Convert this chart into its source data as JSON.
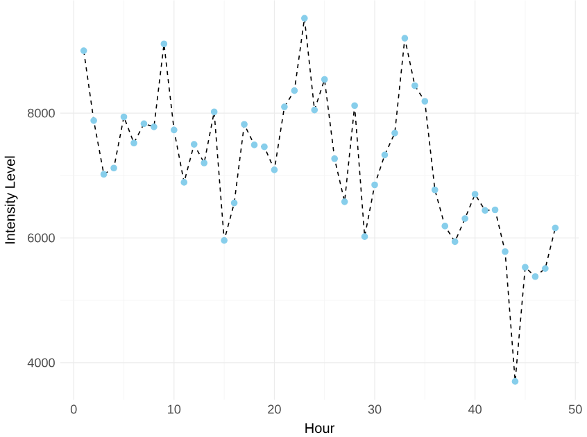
{
  "chart_data": {
    "type": "line",
    "xlabel": "Hour",
    "ylabel": "Intensity Level",
    "x": [
      1,
      2,
      3,
      4,
      5,
      6,
      7,
      8,
      9,
      10,
      11,
      12,
      13,
      14,
      15,
      16,
      17,
      18,
      19,
      20,
      21,
      22,
      23,
      24,
      25,
      26,
      27,
      28,
      29,
      30,
      31,
      32,
      33,
      34,
      35,
      36,
      37,
      38,
      39,
      40,
      41,
      42,
      43,
      44,
      45,
      46,
      47,
      48
    ],
    "series": [
      {
        "color": "#87ceeb",
        "values": [
          9000,
          7880,
          7020,
          7120,
          7940,
          7520,
          7830,
          7780,
          9110,
          7730,
          6890,
          7500,
          7200,
          8020,
          5960,
          6560,
          7820,
          7490,
          7460,
          7090,
          8100,
          8360,
          9520,
          8050,
          8540,
          7270,
          6580,
          8120,
          6020,
          6850,
          7330,
          7680,
          9200,
          8440,
          8190,
          6770,
          6190,
          5940,
          6310,
          6700,
          6440,
          6450,
          5780,
          3700,
          5530,
          5380,
          5510,
          6160
        ]
      }
    ],
    "xlim": [
      -1.35,
      50.35
    ],
    "ylim": [
      3405,
      9806
    ],
    "xticks": [
      0,
      10,
      20,
      30,
      40,
      50
    ],
    "yticks": [
      4000,
      6000,
      8000
    ],
    "grid": true,
    "marker": "circle",
    "line_style": "dashed"
  }
}
